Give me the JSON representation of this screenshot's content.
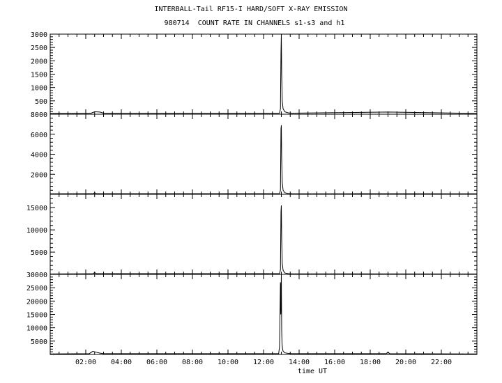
{
  "title_line1": "INTERBALL-Tail RF15-I HARD/SOFT X-RAY EMISSION",
  "title_line2": "980714  COUNT RATE IN CHANNELS s1-s3 and h1",
  "chart_data": [
    {
      "type": "line",
      "panel": "s1",
      "x_range_hours": [
        0,
        24
      ],
      "ylim": [
        0,
        3000
      ],
      "yticks": [
        500,
        1000,
        1500,
        2000,
        2500,
        3000
      ],
      "ytick_labels": [
        "500",
        "1000",
        "1500",
        "2000",
        "2500",
        "3000"
      ],
      "x_hours": [
        0,
        2.3,
        2.5,
        2.8,
        3.0,
        12.9,
        12.95,
        12.98,
        13.0,
        13.02,
        13.05,
        13.1,
        13.2,
        13.4,
        13.6,
        19.0,
        24
      ],
      "values": [
        30,
        40,
        90,
        80,
        40,
        40,
        200,
        2300,
        3000,
        1500,
        500,
        200,
        90,
        50,
        40,
        80,
        30
      ]
    },
    {
      "type": "line",
      "panel": "s2",
      "x_range_hours": [
        0,
        24
      ],
      "ylim": [
        0,
        8000
      ],
      "yticks": [
        2000,
        4000,
        6000,
        8000
      ],
      "ytick_labels": [
        "2000",
        "4000",
        "6000",
        "8000"
      ],
      "x_hours": [
        0,
        2.4,
        2.5,
        2.6,
        12.9,
        12.95,
        12.98,
        13.0,
        13.02,
        13.05,
        13.1,
        13.2,
        13.4,
        13.6,
        24
      ],
      "values": [
        50,
        60,
        150,
        60,
        60,
        400,
        6500,
        6900,
        3500,
        1200,
        400,
        150,
        80,
        60,
        50
      ]
    },
    {
      "type": "line",
      "panel": "s3",
      "x_range_hours": [
        0,
        24
      ],
      "ylim": [
        0,
        18000
      ],
      "yticks": [
        5000,
        10000,
        15000
      ],
      "ytick_labels": [
        "5000",
        "10000",
        "15000"
      ],
      "x_hours": [
        0,
        2.4,
        2.5,
        2.6,
        12.9,
        12.95,
        12.98,
        13.0,
        13.02,
        13.05,
        13.1,
        13.2,
        13.4,
        13.6,
        24
      ],
      "values": [
        100,
        150,
        400,
        150,
        150,
        1000,
        14000,
        15500,
        8000,
        2500,
        900,
        300,
        150,
        120,
        100
      ]
    },
    {
      "type": "line",
      "panel": "h1",
      "x_range_hours": [
        0,
        24
      ],
      "ylim": [
        0,
        30000
      ],
      "yticks": [
        5000,
        10000,
        15000,
        20000,
        25000,
        30000
      ],
      "ytick_labels": [
        "5000",
        "10000",
        "15000",
        "20000",
        "25000",
        "30000"
      ],
      "xlabel": "time UT",
      "xticks": [
        2,
        4,
        6,
        8,
        10,
        12,
        14,
        16,
        18,
        20,
        22
      ],
      "xtick_labels": [
        "02:00",
        "04:00",
        "06:00",
        "08:00",
        "10:00",
        "12:00",
        "14:00",
        "16:00",
        "18:00",
        "20:00",
        "22:00"
      ],
      "x_hours": [
        0,
        2.2,
        2.4,
        2.6,
        2.8,
        3.0,
        12.85,
        12.9,
        12.95,
        12.97,
        13.0,
        13.02,
        13.04,
        13.07,
        13.1,
        13.2,
        13.4,
        13.6,
        18.9,
        19.0,
        19.1,
        24
      ],
      "values": [
        200,
        300,
        1200,
        800,
        500,
        300,
        300,
        3000,
        27000,
        15000,
        30000,
        9000,
        4000,
        2000,
        1200,
        600,
        400,
        300,
        300,
        900,
        300,
        200
      ]
    }
  ]
}
